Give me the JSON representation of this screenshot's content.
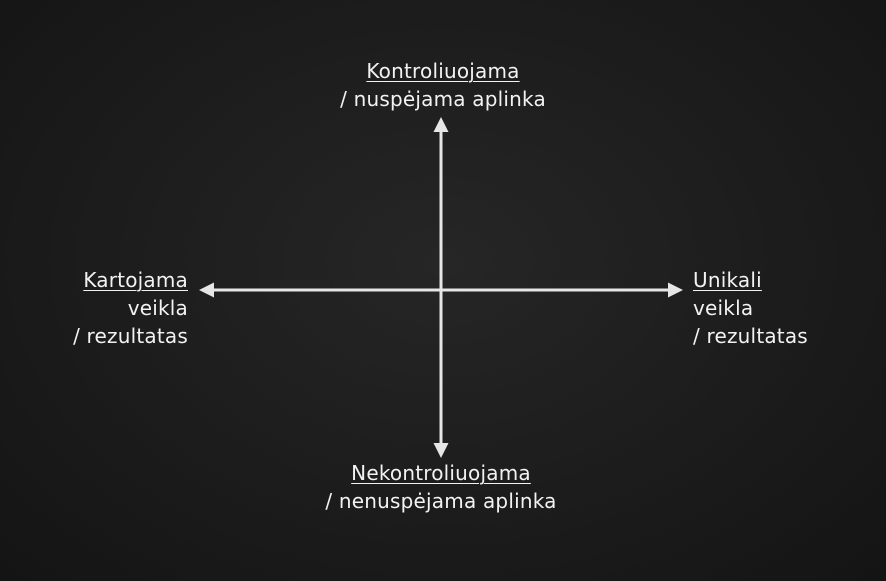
{
  "diagram": {
    "top": {
      "title": "Kontroliuojama",
      "subtitle": "/ nuspėjama aplinka"
    },
    "bottom": {
      "title": "Nekontroliuojama",
      "subtitle": "/ nenuspėjama aplinka"
    },
    "left": {
      "title": "Kartojama",
      "line2": "veikla",
      "line3": "/ rezultatas"
    },
    "right": {
      "title": "Unikali",
      "line2": "veikla",
      "line3": "/ rezultatas"
    },
    "colors": {
      "background": "#1c1c1c",
      "text": "#f2f2f2",
      "arrow": "#e6e6e6"
    }
  }
}
